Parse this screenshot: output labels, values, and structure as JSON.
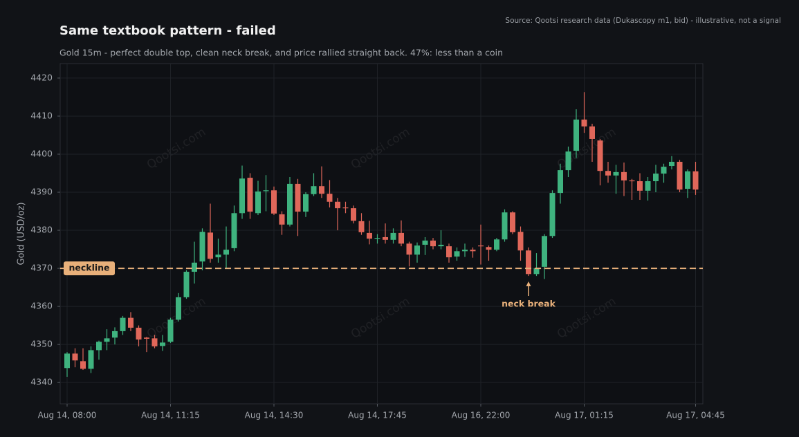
{
  "chart_data": {
    "type": "candlestick",
    "title": "Same textbook pattern - failed",
    "subtitle": "Gold 15m - perfect double top, clean neck break, and price rallied straight back. 47%: less than a coin",
    "source": "Source: Qootsi research data (Dukascopy m1, bid) - illustrative, not a signal",
    "ylabel": "Gold (USD/oz)",
    "watermark": "Qootsi.com",
    "categories": [
      "Aug 14, 08:00",
      null,
      null,
      null,
      null,
      null,
      null,
      null,
      null,
      null,
      null,
      null,
      null,
      "Aug 14, 11:15",
      null,
      null,
      null,
      null,
      null,
      null,
      null,
      null,
      null,
      null,
      null,
      null,
      "Aug 14, 14:30",
      null,
      null,
      null,
      null,
      null,
      null,
      null,
      null,
      null,
      null,
      null,
      null,
      "Aug 14, 17:45",
      null,
      null,
      null,
      null,
      null,
      null,
      null,
      null,
      null,
      null,
      null,
      null,
      "Aug 16, 22:00",
      null,
      null,
      null,
      null,
      null,
      null,
      null,
      null,
      null,
      null,
      null,
      null,
      "Aug 17, 01:15",
      null,
      null,
      null,
      null,
      null,
      null,
      null,
      null,
      null,
      null,
      null,
      null,
      null,
      "Aug 17, 04:45"
    ],
    "open": [
      4343.8,
      4347.6,
      4345.6,
      4343.6,
      4348.5,
      4350.7,
      4351.8,
      4353.5,
      4357,
      4354.4,
      4351.8,
      4351.6,
      4349.6,
      4350.7,
      4356.5,
      4362.4,
      4369.1,
      4371.8,
      4379.4,
      4372.9,
      4373.6,
      4375.3,
      4384.5,
      4393.8,
      4384.5,
      4390.4,
      4390.5,
      4384.2,
      4381.5,
      4392.2,
      4384.9,
      4389.5,
      4391.6,
      4389.6,
      4387.5,
      4386,
      4385.8,
      4382.4,
      4379.3,
      4377.8,
      4378.2,
      4377.5,
      4379.3,
      4376.5,
      4373.6,
      4376.2,
      4377.3,
      4375.8,
      4375.8,
      4373.1,
      4374.5,
      4374.9,
      4376,
      4375.6,
      4374.9,
      4377.6,
      4384.7,
      4379.6,
      4374.7,
      4368.5,
      4370.4,
      4378.5,
      4389.8,
      4395.8,
      4400.9,
      4409.1,
      4407.3,
      4403.6,
      4395.6,
      4394.4,
      4395.3,
      4393.1,
      4392.9,
      4390.4,
      4392.9,
      4394.9,
      4396.9,
      4398,
      4390.9,
      4395.5
    ],
    "high": [
      4348,
      4349,
      4349,
      4349.5,
      4351,
      4354,
      4354.5,
      4357.5,
      4358.5,
      4355,
      4352,
      4352.5,
      4352.5,
      4357,
      4363.5,
      4369.5,
      4377,
      4380.5,
      4387,
      4377.8,
      4381,
      4386.5,
      4397,
      4395,
      4393,
      4394.5,
      4391.5,
      4385,
      4394,
      4393.5,
      4390,
      4395,
      4396.8,
      4393.2,
      4388.5,
      4387.5,
      4386.5,
      4384.5,
      4382.5,
      4379,
      4381.8,
      4380.5,
      4382.6,
      4377,
      4376.8,
      4378.2,
      4378,
      4380,
      4376.5,
      4375.5,
      4376.5,
      4375.5,
      4381.5,
      4376,
      4378,
      4385.5,
      4385,
      4381,
      4375.5,
      4374,
      4379,
      4390.5,
      4397.5,
      4402,
      4411.8,
      4416.3,
      4408,
      4404,
      4398,
      4397.2,
      4397.8,
      4393.5,
      4395,
      4394,
      4397.2,
      4397.5,
      4399.5,
      4398.5,
      4396,
      4398
    ],
    "low": [
      4341.5,
      4344,
      4343.3,
      4342.5,
      4346,
      4348.5,
      4350,
      4352.5,
      4353.5,
      4349.5,
      4348,
      4349,
      4348.3,
      4350.4,
      4356,
      4362,
      4366,
      4369.5,
      4371.5,
      4371.5,
      4370,
      4374.5,
      4383,
      4383,
      4384,
      4385,
      4384,
      4378.8,
      4381,
      4378.5,
      4383.5,
      4389,
      4388.5,
      4386,
      4380,
      4384.5,
      4381.8,
      4378.8,
      4376.3,
      4376.5,
      4376.5,
      4376.5,
      4375.8,
      4370.5,
      4371.5,
      4373.5,
      4375,
      4375,
      4371.5,
      4372,
      4373,
      4372.8,
      4371,
      4372,
      4374.5,
      4377,
      4379,
      4372,
      4368,
      4368,
      4367.2,
      4378,
      4387,
      4394,
      4399,
      4405.6,
      4398,
      4391.8,
      4392.5,
      4389.6,
      4389,
      4388,
      4388,
      4387.8,
      4390,
      4392.5,
      4396,
      4390,
      4388.5,
      4389.3
    ],
    "close": [
      4347.6,
      4345.8,
      4343.6,
      4348.5,
      4350.7,
      4351.6,
      4353.5,
      4357,
      4354.4,
      4351.3,
      4351.5,
      4349.5,
      4350.5,
      4356.5,
      4362.4,
      4369.1,
      4371.5,
      4379.6,
      4372.5,
      4373.6,
      4374.9,
      4384.5,
      4393.6,
      4384.9,
      4390.2,
      4390.5,
      4384.4,
      4381.5,
      4392.2,
      4384.9,
      4389.5,
      4391.6,
      4389.6,
      4387.5,
      4385.8,
      4385.8,
      4382.5,
      4379.5,
      4377.8,
      4378,
      4377.5,
      4379.3,
      4376.5,
      4373.6,
      4376,
      4377.3,
      4375.8,
      4376.2,
      4372.9,
      4374.5,
      4374.9,
      4374.5,
      4375.8,
      4374.9,
      4377.6,
      4384.7,
      4379.5,
      4374.7,
      4368.5,
      4370,
      4378.5,
      4389.8,
      4395.8,
      4400.7,
      4409.1,
      4407.3,
      4404,
      4395.6,
      4394.4,
      4395.3,
      4393.1,
      4392.9,
      4390.4,
      4392.9,
      4394.9,
      4396.7,
      4398,
      4390.7,
      4395.5,
      4390.7
    ],
    "up_color": "#3fb37f",
    "down_color": "#e0675a",
    "ylim": [
      4334.4,
      4423.8
    ],
    "yticks": [
      4340,
      4350,
      4360,
      4370,
      4380,
      4390,
      4400,
      4410,
      4420
    ],
    "grid": true,
    "neckline": {
      "value": 4370,
      "label": "neckline",
      "color": "#e8b07a"
    },
    "annotation": "neck break"
  }
}
